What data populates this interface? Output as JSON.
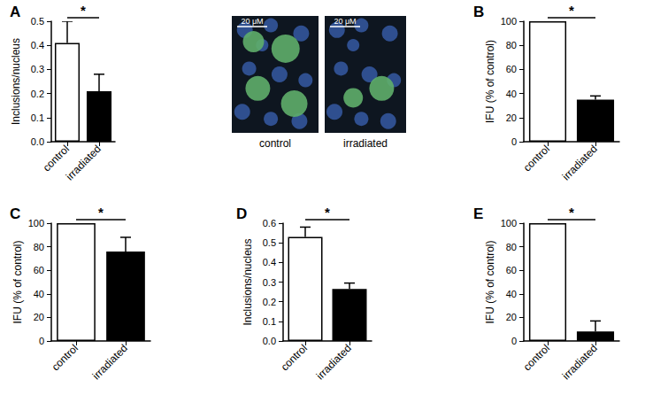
{
  "chart_data": [
    {
      "type": "bar",
      "title": "A",
      "y_label": "Inclusions/nucleus",
      "categories": [
        "control",
        "irradiated"
      ],
      "values": [
        0.41,
        0.21
      ],
      "errors": [
        0.09,
        0.07
      ],
      "colors": [
        "#ffffff",
        "#000000"
      ],
      "ylim": [
        0,
        0.5
      ],
      "yticks": [
        {
          "value": 0,
          "label": "0.0"
        },
        0.1,
        0.2,
        0.3,
        0.4,
        0.5
      ],
      "annotations": [
        {
          "text": "*",
          "from": "control",
          "to": "irradiated"
        }
      ],
      "grid": false
    },
    {
      "type": "bar",
      "title": "B",
      "y_label": "IFU (% of control)",
      "categories": [
        "control",
        "irradiated"
      ],
      "values": [
        100,
        35
      ],
      "errors": [
        null,
        3
      ],
      "colors": [
        "#ffffff",
        "#000000"
      ],
      "ylim": [
        0,
        100
      ],
      "yticks": [
        0,
        20,
        40,
        60,
        80,
        100
      ],
      "annotations": [
        {
          "text": "*",
          "from": "control",
          "to": "irradiated"
        }
      ],
      "grid": false
    },
    {
      "type": "bar",
      "title": "C",
      "y_label": "IFU (% of control)",
      "categories": [
        "control",
        "irradiated"
      ],
      "values": [
        100,
        76
      ],
      "errors": [
        null,
        12
      ],
      "colors": [
        "#ffffff",
        "#000000"
      ],
      "ylim": [
        0,
        100
      ],
      "yticks": [
        0,
        20,
        40,
        60,
        80,
        100
      ],
      "annotations": [
        {
          "text": "*",
          "from": "control",
          "to": "irradiated"
        }
      ],
      "grid": false
    },
    {
      "type": "bar",
      "title": "D",
      "y_label": "Inclusions/nucleus",
      "categories": [
        "control",
        "irradiated"
      ],
      "values": [
        0.53,
        0.265
      ],
      "errors": [
        0.05,
        0.03
      ],
      "colors": [
        "#ffffff",
        "#000000"
      ],
      "ylim": [
        0,
        0.6
      ],
      "yticks": [
        {
          "value": 0,
          "label": "0.0"
        },
        0.1,
        0.2,
        0.3,
        0.4,
        0.5,
        0.6
      ],
      "annotations": [
        {
          "text": "*",
          "from": "control",
          "to": "irradiated"
        }
      ],
      "grid": false
    },
    {
      "type": "bar",
      "title": "E",
      "y_label": "IFU (% of control)",
      "categories": [
        "control",
        "irradiated"
      ],
      "values": [
        100,
        8
      ],
      "errors": [
        null,
        9
      ],
      "colors": [
        "#ffffff",
        "#000000"
      ],
      "ylim": [
        0,
        100
      ],
      "yticks": [
        0,
        20,
        40,
        60,
        80,
        100
      ],
      "annotations": [
        {
          "text": "*",
          "from": "control",
          "to": "irradiated"
        }
      ],
      "grid": false
    }
  ],
  "images": [
    {
      "label": "control",
      "scale_bar": "20 μM"
    },
    {
      "label": "irradiated",
      "scale_bar": "20 μM"
    }
  ]
}
